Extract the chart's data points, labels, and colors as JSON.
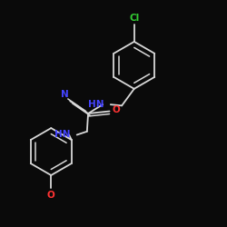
{
  "background": "#0a0a0a",
  "bond_color": "#d8d8d8",
  "atom_colors": {
    "N": "#4444ff",
    "O": "#ff3333",
    "Cl": "#33cc33"
  },
  "font_size_atom": 7.5,
  "figsize": [
    2.5,
    2.5
  ],
  "dpi": 100
}
